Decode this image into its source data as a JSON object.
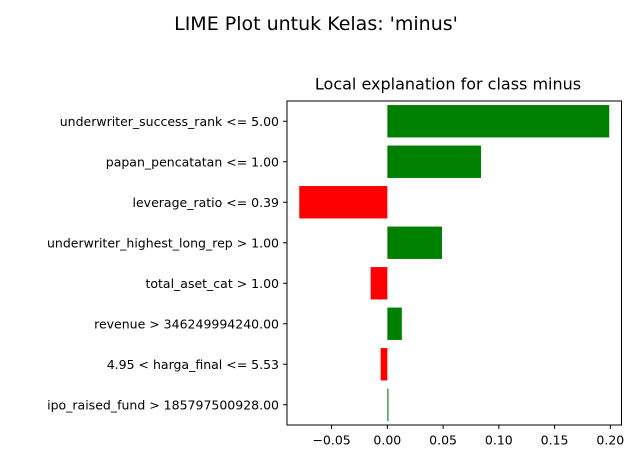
{
  "chart_data": {
    "type": "bar",
    "orientation": "horizontal",
    "suptitle": "LIME Plot untuk Kelas: 'minus'",
    "title": "Local explanation for class minus",
    "xlabel": "",
    "ylabel": "",
    "xlim": [
      -0.09,
      0.21
    ],
    "xticks": [
      -0.05,
      0.0,
      0.05,
      0.1,
      0.15,
      0.2
    ],
    "xtick_labels": [
      "−0.05",
      "0.00",
      "0.05",
      "0.10",
      "0.15",
      "0.20"
    ],
    "grid": false,
    "legend": "none",
    "categories": [
      "underwriter_success_rank <= 5.00",
      "papan_pencatatan <= 1.00",
      "leverage_ratio <= 0.39",
      "underwriter_highest_long_rep > 1.00",
      "total_aset_cat > 1.00",
      "revenue > 346249994240.00",
      "4.95 < harga_final <= 5.53",
      "ipo_raised_fund > 185797500928.00"
    ],
    "values": [
      0.199,
      0.084,
      -0.079,
      0.049,
      -0.015,
      0.013,
      -0.006,
      0.001
    ],
    "colors": {
      "positive": "#008000",
      "negative": "#ff0000"
    }
  }
}
